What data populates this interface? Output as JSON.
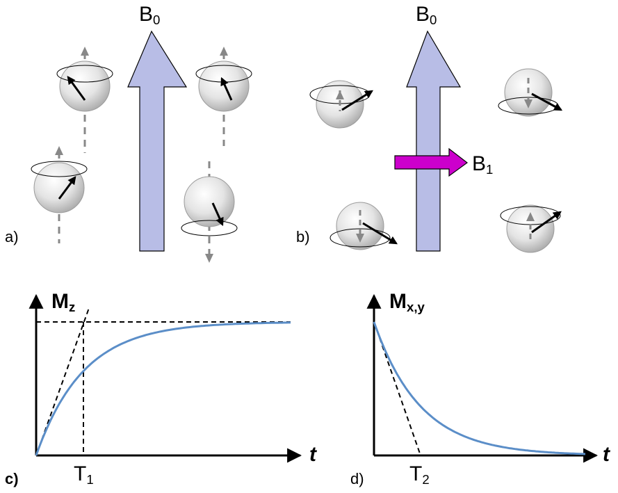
{
  "panels": {
    "a": "a)",
    "b": "b)",
    "c": "c)",
    "d": "d)"
  },
  "labels": {
    "b0_a": {
      "main": "B",
      "sub": "0"
    },
    "b0_b": {
      "main": "B",
      "sub": "0"
    },
    "b1": {
      "main": "B",
      "sub": "1"
    },
    "mz": {
      "main": "M",
      "sub": "z"
    },
    "mxy": {
      "main": "M",
      "sub": "x,y"
    },
    "t1": {
      "main": "T",
      "sub": "1"
    },
    "t2": {
      "main": "T",
      "sub": "2"
    },
    "t_c": "t",
    "t_d": "t"
  },
  "colors": {
    "b0_arrow": "#b8bde6",
    "b1_arrow": "#cc00cc",
    "curve": "#5b8ec8",
    "axis": "#000000"
  },
  "icons": [
    "spin-sphere-icon",
    "precession-orbit-icon",
    "magnetic-moment-arrow-icon"
  ]
}
